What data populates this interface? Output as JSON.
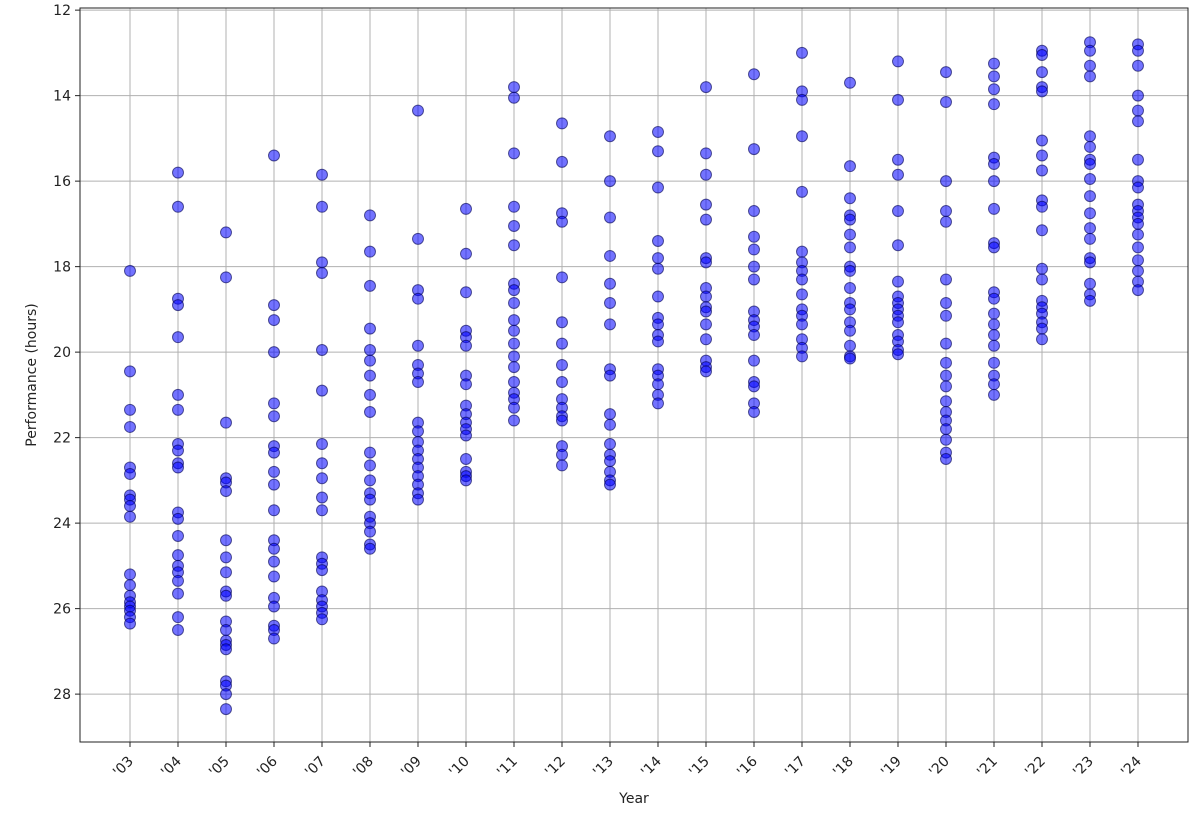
{
  "chart_data": {
    "type": "scatter",
    "xlabel": "Year",
    "ylabel": "Performance (hours)",
    "categories": [
      "'03",
      "'04",
      "'05",
      "'06",
      "'07",
      "'08",
      "'09",
      "'10",
      "'11",
      "'12",
      "'13",
      "'14",
      "'15",
      "'16",
      "'17",
      "'18",
      "'19",
      "'20",
      "'21",
      "'22",
      "'23",
      "'24"
    ],
    "color": "#0000ff",
    "values": [
      [
        18.1,
        20.45,
        21.35,
        21.75,
        22.7,
        22.85,
        23.35,
        23.45,
        23.6,
        23.85,
        25.2,
        25.45,
        25.7,
        25.85,
        25.95,
        26.05,
        26.2,
        26.35
      ],
      [
        15.8,
        16.6,
        18.75,
        18.9,
        19.65,
        21.0,
        21.35,
        22.15,
        22.3,
        22.6,
        22.7,
        23.75,
        23.9,
        24.3,
        24.75,
        25.0,
        25.15,
        25.35,
        25.65,
        26.2,
        26.5
      ],
      [
        17.2,
        18.25,
        21.65,
        22.95,
        23.05,
        23.25,
        24.4,
        24.8,
        25.15,
        25.6,
        25.7,
        26.3,
        26.5,
        26.75,
        26.85,
        26.95,
        27.7,
        27.8,
        28.0,
        28.35
      ],
      [
        15.4,
        18.9,
        19.25,
        20.0,
        21.2,
        21.5,
        22.2,
        22.35,
        22.8,
        23.1,
        23.7,
        24.4,
        24.6,
        24.9,
        25.25,
        25.75,
        25.95,
        26.4,
        26.5,
        26.7
      ],
      [
        15.85,
        16.6,
        17.9,
        18.15,
        19.95,
        20.9,
        22.15,
        22.6,
        22.95,
        23.4,
        23.7,
        24.8,
        24.95,
        25.1,
        25.6,
        25.8,
        25.95,
        26.1,
        26.25
      ],
      [
        16.8,
        17.65,
        18.45,
        19.45,
        19.95,
        20.2,
        20.55,
        21.0,
        21.4,
        22.35,
        22.65,
        23.0,
        23.3,
        23.45,
        23.85,
        24.0,
        24.2,
        24.5,
        24.6
      ],
      [
        14.35,
        17.35,
        18.55,
        18.75,
        19.85,
        20.3,
        20.5,
        20.7,
        21.65,
        21.85,
        22.1,
        22.3,
        22.5,
        22.7,
        22.9,
        23.1,
        23.3,
        23.45
      ],
      [
        16.65,
        17.7,
        18.6,
        19.5,
        19.65,
        19.85,
        20.55,
        20.75,
        21.25,
        21.45,
        21.65,
        21.8,
        21.95,
        22.5,
        22.8,
        22.9,
        23.0
      ],
      [
        13.8,
        14.05,
        15.35,
        16.6,
        17.05,
        17.5,
        18.4,
        18.55,
        18.85,
        19.25,
        19.5,
        19.8,
        20.1,
        20.35,
        20.7,
        20.95,
        21.1,
        21.3,
        21.6
      ],
      [
        14.65,
        15.55,
        16.75,
        16.95,
        18.25,
        19.3,
        19.8,
        20.3,
        20.7,
        21.1,
        21.3,
        21.5,
        21.6,
        22.2,
        22.4,
        22.65
      ],
      [
        14.95,
        16.0,
        16.85,
        17.75,
        18.4,
        18.85,
        19.35,
        20.4,
        20.55,
        21.45,
        21.7,
        22.15,
        22.4,
        22.55,
        22.8,
        23.0,
        23.1
      ],
      [
        14.85,
        15.3,
        16.15,
        17.4,
        17.8,
        18.05,
        18.7,
        19.2,
        19.35,
        19.6,
        19.75,
        20.4,
        20.55,
        20.75,
        21.0,
        21.2
      ],
      [
        13.8,
        15.35,
        15.85,
        16.55,
        16.9,
        17.8,
        17.9,
        18.5,
        18.7,
        18.95,
        19.05,
        19.35,
        19.7,
        20.2,
        20.35,
        20.45
      ],
      [
        13.5,
        15.25,
        16.7,
        17.3,
        17.6,
        18.0,
        18.3,
        19.05,
        19.25,
        19.4,
        19.6,
        20.2,
        20.7,
        20.8,
        21.2,
        21.4
      ],
      [
        13.0,
        13.9,
        14.1,
        14.95,
        16.25,
        17.65,
        17.9,
        18.1,
        18.3,
        18.65,
        19.0,
        19.15,
        19.35,
        19.7,
        19.9,
        20.1
      ],
      [
        13.7,
        15.65,
        16.4,
        16.8,
        16.9,
        17.25,
        17.55,
        18.0,
        18.1,
        18.5,
        18.85,
        19.0,
        19.3,
        19.5,
        19.85,
        20.1,
        20.15
      ],
      [
        13.2,
        14.1,
        15.5,
        15.85,
        16.7,
        17.5,
        18.35,
        18.7,
        18.85,
        19.0,
        19.15,
        19.3,
        19.6,
        19.75,
        19.95,
        20.05
      ],
      [
        13.45,
        14.15,
        16.0,
        16.7,
        16.95,
        18.3,
        18.85,
        19.15,
        19.8,
        20.25,
        20.55,
        20.8,
        21.15,
        21.4,
        21.6,
        21.8,
        22.05,
        22.35,
        22.5
      ],
      [
        13.25,
        13.55,
        13.85,
        14.2,
        15.45,
        15.6,
        16.0,
        16.65,
        17.45,
        17.55,
        18.6,
        18.75,
        19.1,
        19.35,
        19.6,
        19.85,
        20.25,
        20.55,
        20.75,
        21.0
      ],
      [
        12.95,
        13.05,
        13.45,
        13.8,
        13.9,
        15.05,
        15.4,
        15.75,
        16.45,
        16.6,
        17.15,
        18.05,
        18.3,
        18.8,
        18.95,
        19.1,
        19.3,
        19.45,
        19.7
      ],
      [
        12.75,
        12.95,
        13.3,
        13.55,
        14.95,
        15.2,
        15.5,
        15.6,
        15.95,
        16.35,
        16.75,
        17.1,
        17.35,
        17.8,
        17.9,
        18.4,
        18.65,
        18.8
      ],
      [
        12.8,
        12.95,
        13.3,
        14.0,
        14.35,
        14.6,
        15.5,
        16.0,
        16.15,
        16.55,
        16.7,
        16.85,
        17.0,
        17.25,
        17.55,
        17.85,
        18.1,
        18.35,
        18.55
      ]
    ],
    "ylim": [
      29.12,
      11.95
    ],
    "yticks": [
      12,
      14,
      16,
      18,
      20,
      22,
      24,
      26,
      28
    ],
    "grid": true
  }
}
